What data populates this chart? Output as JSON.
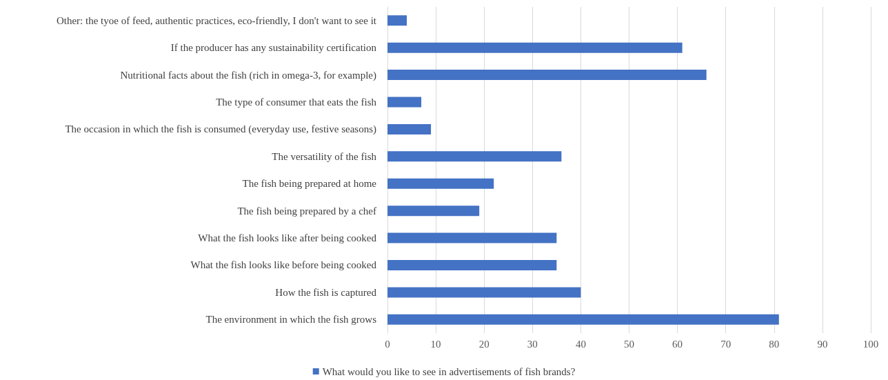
{
  "chart_data": {
    "type": "bar",
    "orientation": "horizontal",
    "categories": [
      "Other: the tyoe of feed, authentic practices, eco-friendly, I don't want to see it",
      "If the producer has any sustainability certification",
      "Nutritional facts about the fish (rich in omega-3, for example)",
      "The type of consumer that eats the fish",
      "The occasion in which the fish is consumed (everyday use, festive seasons)",
      "The versatility of the fish",
      "The fish being prepared at home",
      "The fish being prepared by a chef",
      "What the fish looks like after being cooked",
      "What the fish looks like before being cooked",
      "How the fish is captured",
      "The environment in which the fish grows"
    ],
    "series": [
      {
        "name": "What would you like to see in advertisements of fish brands?",
        "color": "#4472c4",
        "values": [
          4,
          61,
          66,
          7,
          9,
          36,
          22,
          19,
          35,
          35,
          40,
          81
        ]
      }
    ],
    "xlim": [
      0,
      100
    ],
    "xticks": [
      0,
      10,
      20,
      30,
      40,
      50,
      60,
      70,
      80,
      90,
      100
    ],
    "grid": "x",
    "legend": "bottom"
  }
}
